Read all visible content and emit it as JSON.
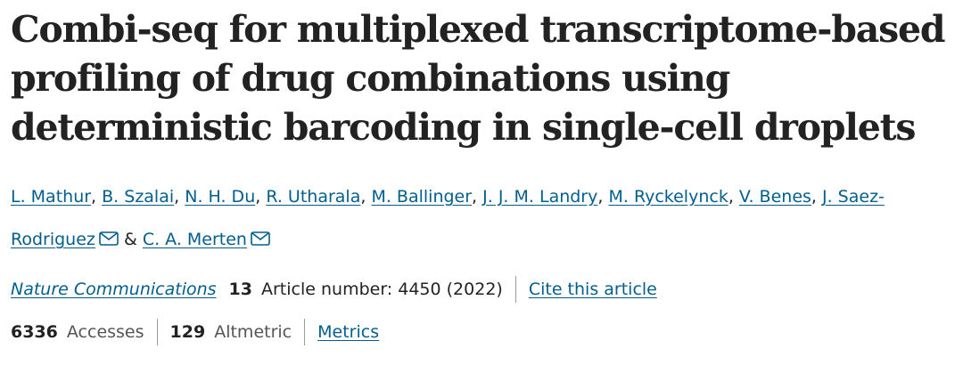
{
  "title": "Combi-seq for multiplexed transcriptome-based profiling of drug combinations using deterministic barcoding in single-cell droplets",
  "authors": [
    {
      "name": "L. Mathur",
      "corresponding": false
    },
    {
      "name": "B. Szalai",
      "corresponding": false
    },
    {
      "name": "N. H. Du",
      "corresponding": false
    },
    {
      "name": "R. Utharala",
      "corresponding": false
    },
    {
      "name": "M. Ballinger",
      "corresponding": false
    },
    {
      "name": "J. J. M. Landry",
      "corresponding": false
    },
    {
      "name": "M. Ryckelynck",
      "corresponding": false
    },
    {
      "name": "V. Benes",
      "corresponding": false
    },
    {
      "name": "J. Saez-Rodriguez",
      "corresponding": true
    },
    {
      "name": "C. A. Merten",
      "corresponding": true
    }
  ],
  "author_separator": ",",
  "author_conjunction": "&",
  "citation": {
    "journal": "Nature Communications",
    "volume": "13",
    "article": "Article number: 4450 (2022)",
    "cite_link": "Cite this article"
  },
  "metrics": {
    "accesses": "6336",
    "accesses_label": "Accesses",
    "altmetric": "129",
    "altmetric_label": "Altmetric",
    "metrics_link": "Metrics"
  }
}
